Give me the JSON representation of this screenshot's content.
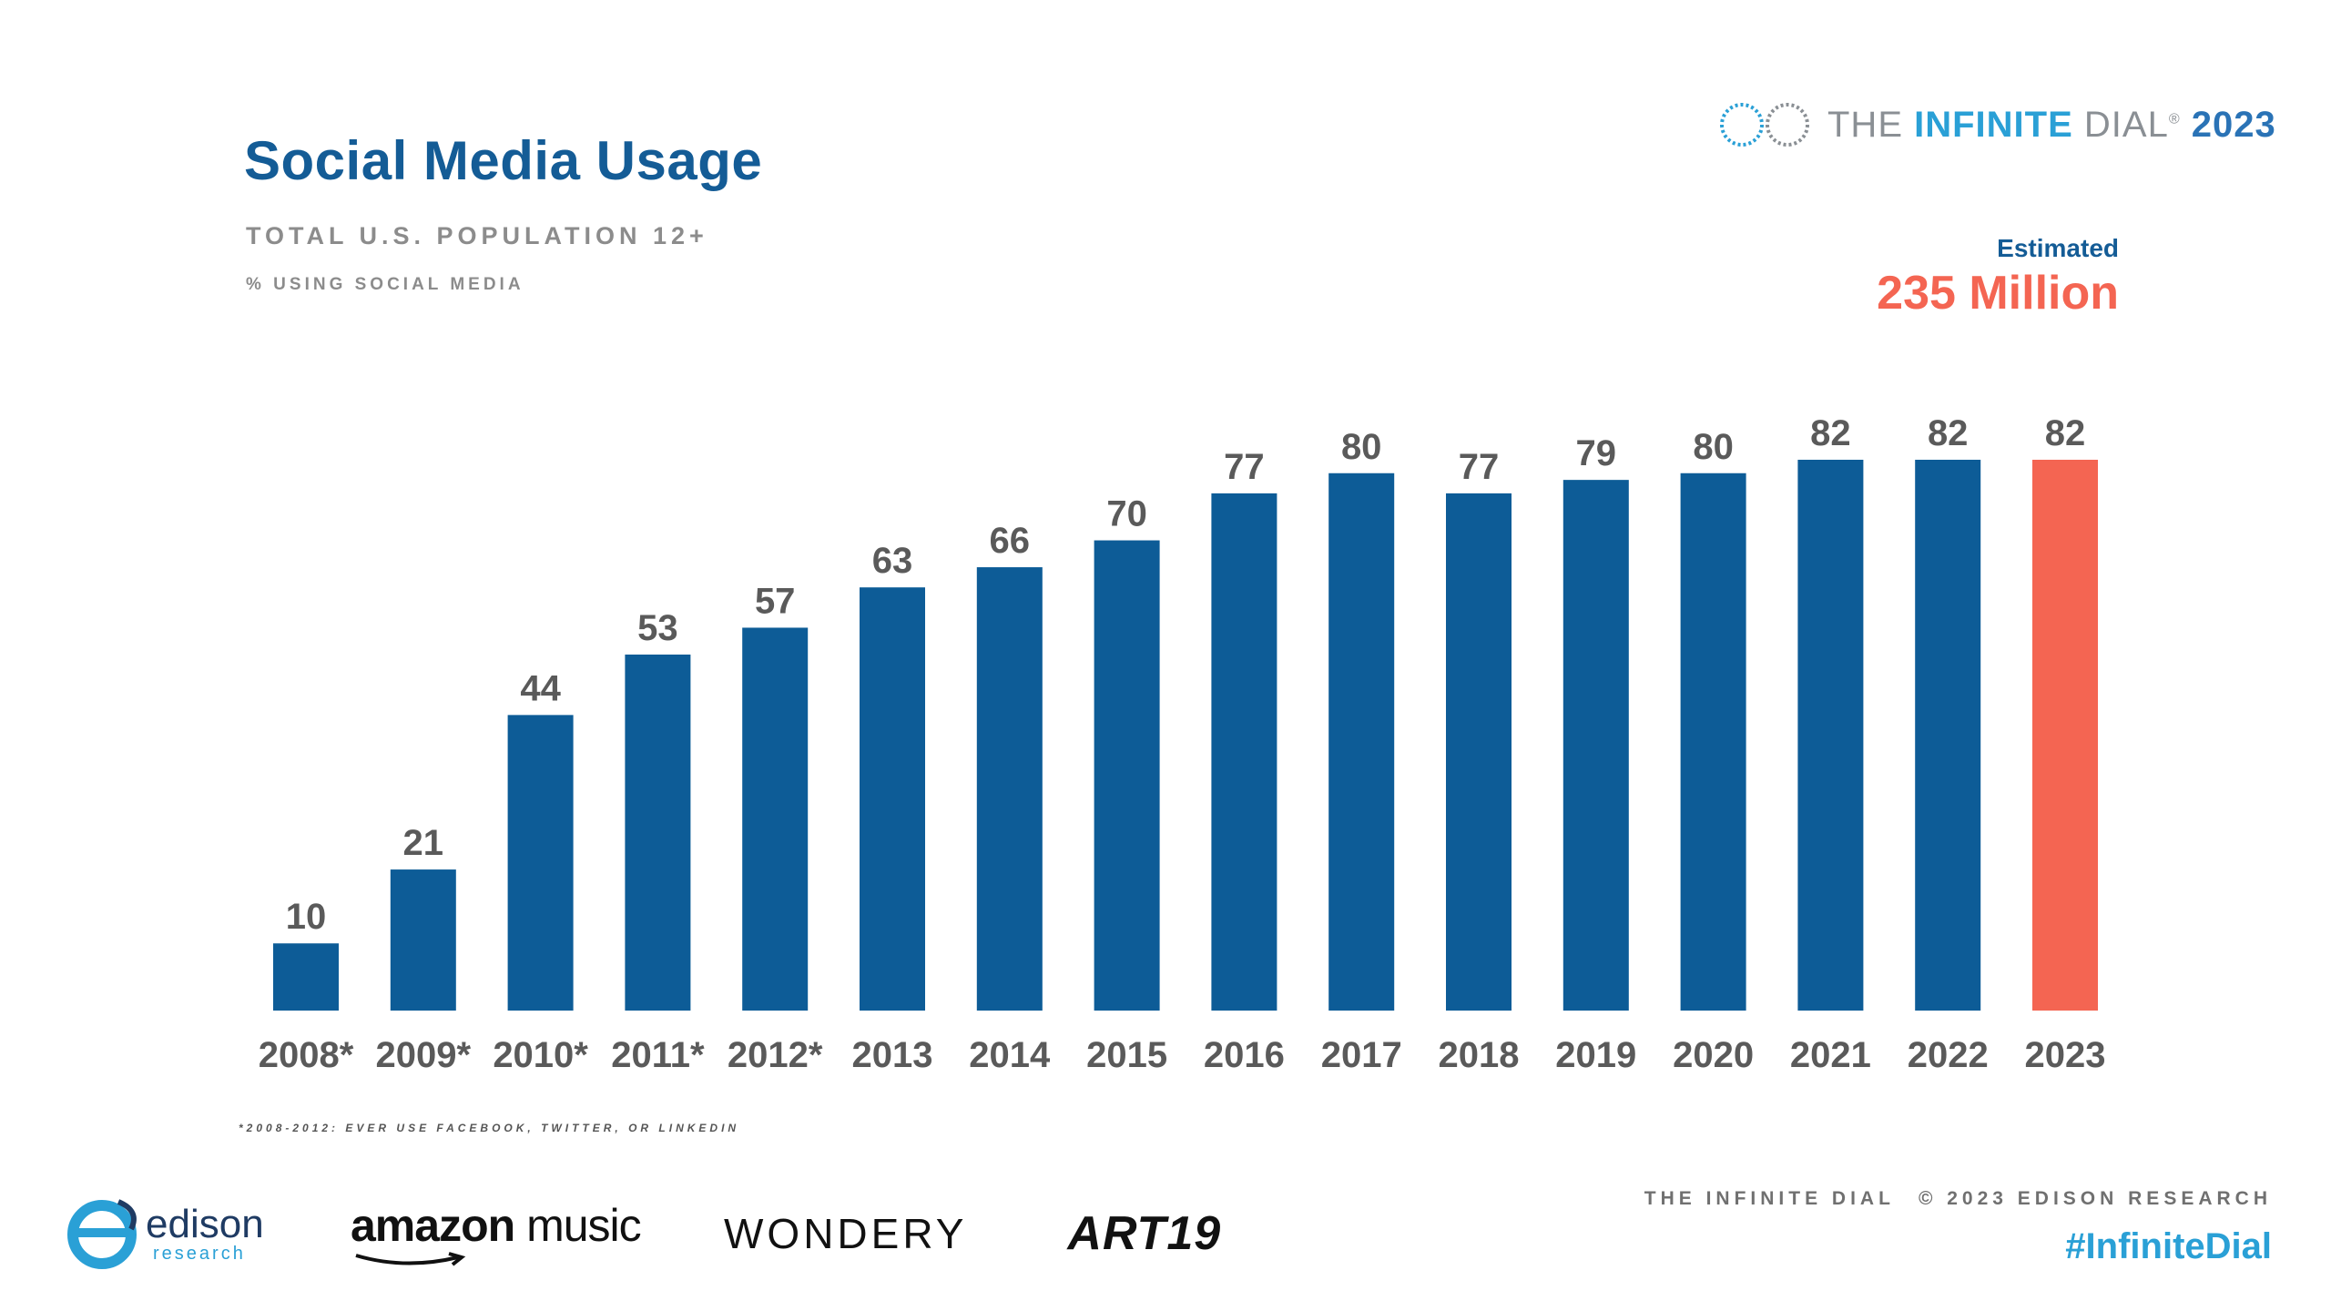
{
  "header": {
    "title": "Social Media Usage",
    "subtitle": "TOTAL U.S. POPULATION 12+",
    "measure": "% USING SOCIAL MEDIA"
  },
  "brand": {
    "icon": "infinity-icon",
    "the": "THE",
    "infinite": "INFINITE",
    "dial": "DIAL",
    "registered": "®",
    "year": "2023"
  },
  "estimate": {
    "label": "Estimated",
    "value": "235 Million"
  },
  "chart_data": {
    "type": "bar",
    "title": "Social Media Usage",
    "subtitle": "TOTAL U.S. POPULATION 12+",
    "ylabel": "% USING SOCIAL MEDIA",
    "xlabel": "",
    "categories": [
      "2008*",
      "2009*",
      "2010*",
      "2011*",
      "2012*",
      "2013",
      "2014",
      "2015",
      "2016",
      "2017",
      "2018",
      "2019",
      "2020",
      "2021",
      "2022",
      "2023"
    ],
    "values": [
      10,
      21,
      44,
      53,
      57,
      63,
      66,
      70,
      77,
      80,
      77,
      79,
      80,
      82,
      82,
      82
    ],
    "ylim": [
      0,
      82
    ],
    "grid": false,
    "legend": "none",
    "highlight_index": 15,
    "colors": {
      "bar": "#0d5c97",
      "highlight": "#f46552",
      "label": "#5a5a5a"
    }
  },
  "footnote": "*2008-2012: EVER USE FACEBOOK, TWITTER, OR LINKEDIN",
  "sponsors": {
    "edison_name": "edison",
    "edison_sub": "research",
    "amazon_bold": "amazon",
    "amazon_thin": "music",
    "wondery": "WONDERY",
    "art19": "ART19"
  },
  "footer": {
    "left": "THE INFINITE DIAL",
    "right": "© 2023 EDISON RESEARCH",
    "hashtag": "#InfiniteDial"
  }
}
